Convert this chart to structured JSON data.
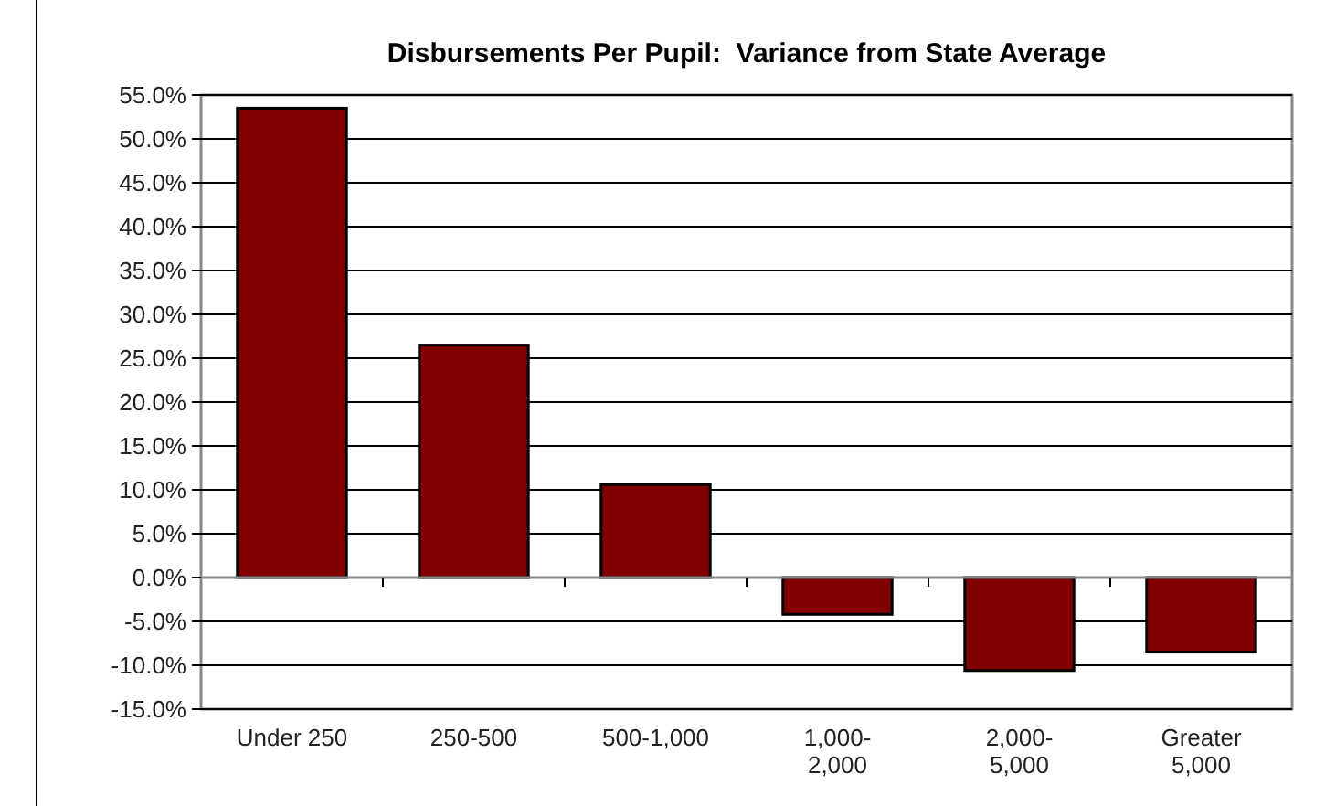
{
  "chart_data": {
    "type": "bar",
    "title": "Disbursements Per Pupil:  Variance from State Average",
    "categories": [
      "Under 250",
      "250-500",
      "500-1,000",
      "1,000-\n2,000",
      "2,000-\n5,000",
      "Greater\n5,000"
    ],
    "values": [
      53.5,
      26.5,
      10.6,
      -4.2,
      -10.6,
      -8.5
    ],
    "color": "#800000",
    "ylim": [
      -15,
      55
    ],
    "yticks": [
      {
        "value": -15,
        "label": "-15.0%"
      },
      {
        "value": -10,
        "label": "-10.0%"
      },
      {
        "value": -5,
        "label": "-5.0%"
      },
      {
        "value": 0,
        "label": "0.0%"
      },
      {
        "value": 5,
        "label": "5.0%"
      },
      {
        "value": 10,
        "label": "10.0%"
      },
      {
        "value": 15,
        "label": "15.0%"
      },
      {
        "value": 20,
        "label": "20.0%"
      },
      {
        "value": 25,
        "label": "25.0%"
      },
      {
        "value": 30,
        "label": "30.0%"
      },
      {
        "value": 35,
        "label": "35.0%"
      },
      {
        "value": 40,
        "label": "40.0%"
      },
      {
        "value": 45,
        "label": "45.0%"
      },
      {
        "value": 50,
        "label": "50.0%"
      },
      {
        "value": 55,
        "label": "55.0%"
      }
    ],
    "grid": "y"
  }
}
